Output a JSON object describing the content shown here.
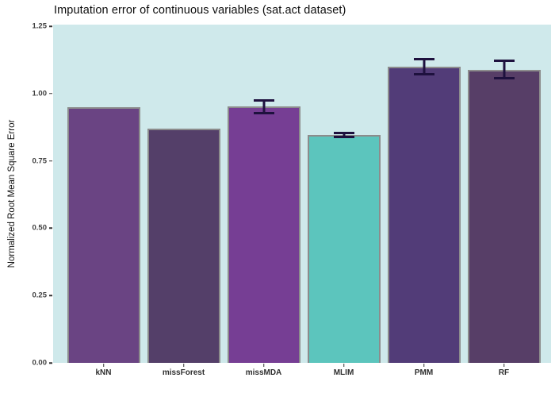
{
  "title": "Imputation error of continuous variables (sat.act dataset)",
  "chart_data": {
    "type": "bar",
    "title": "Imputation error of continuous variables (sat.act dataset)",
    "xlabel": "",
    "ylabel": "Normalized Root Mean Square Error",
    "categories": [
      "kNN",
      "missForest",
      "missMDA",
      "MLIM",
      "PMM",
      "RF"
    ],
    "values": [
      0.948,
      0.87,
      0.951,
      0.846,
      1.1,
      1.089
    ],
    "error_bars": [
      null,
      null,
      0.029,
      0.012,
      0.032,
      0.038
    ],
    "bar_colors": [
      "#6A4483",
      "#543F69",
      "#763E94",
      "#5CC5BD",
      "#523C78",
      "#573E67"
    ],
    "bar_border_color": "#8C8C8C",
    "error_bar_color": "#1E113E",
    "panel_background": "#CFE9EB",
    "ylim": [
      0,
      1.25
    ],
    "yticks": [
      0.0,
      0.25,
      0.5,
      0.75,
      1.0,
      1.25
    ],
    "grid": false,
    "legend_position": "none"
  }
}
